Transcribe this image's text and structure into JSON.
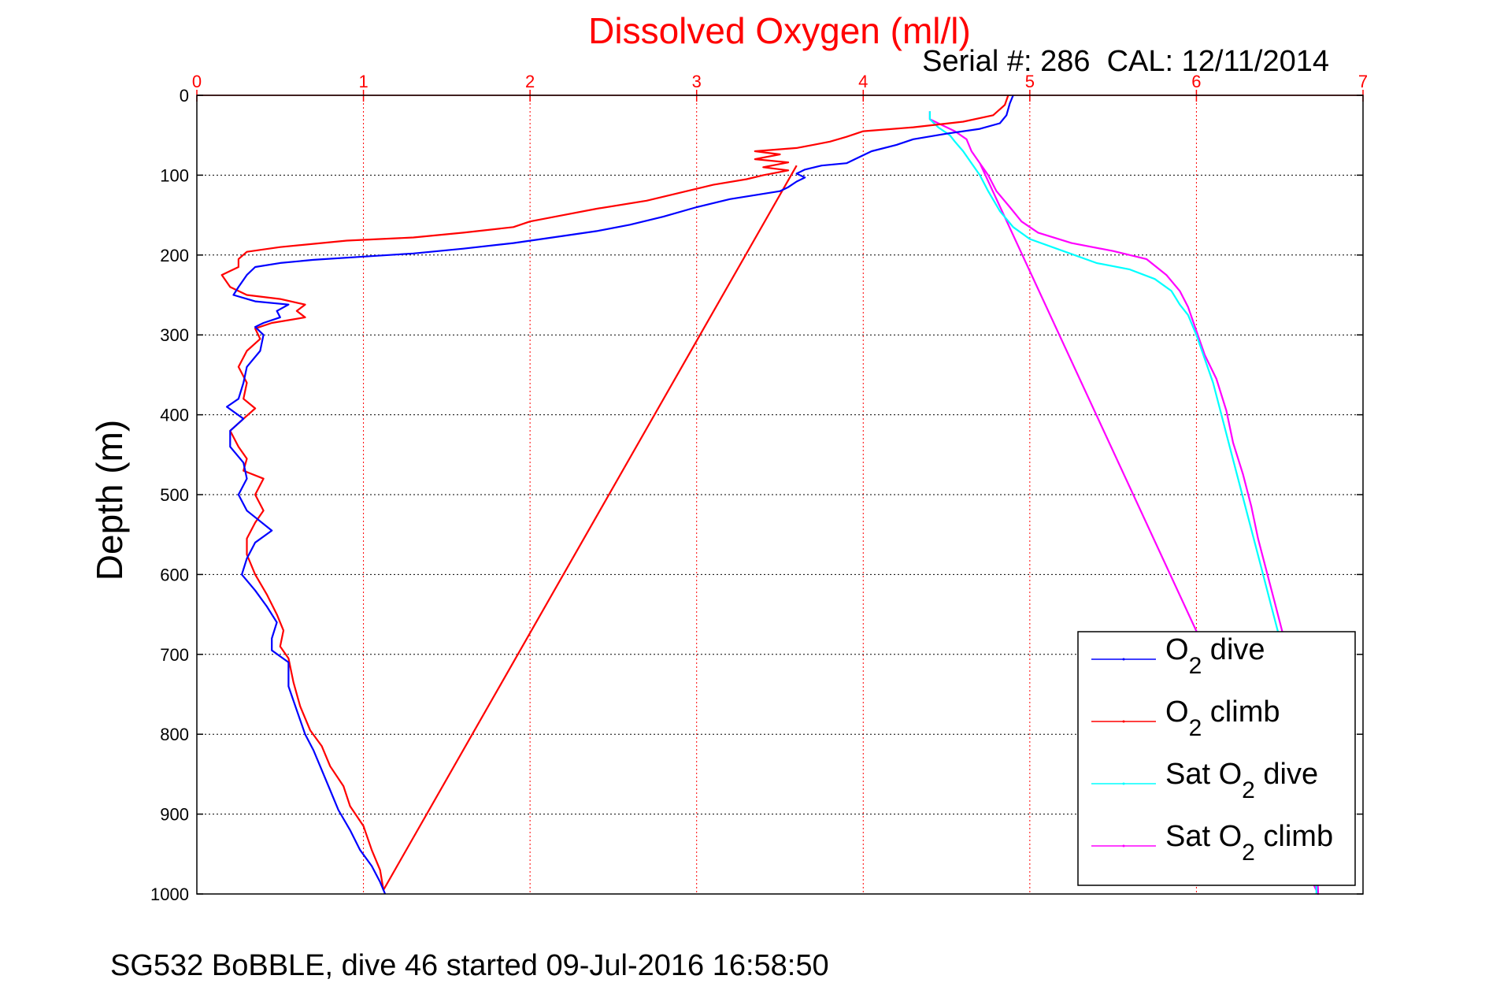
{
  "colors": {
    "axis_x": "#ff0000",
    "axis_y": "#000000",
    "grid_x": "#ff0000",
    "grid_y": "#000000",
    "o2_dive": "#0000ff",
    "o2_climb": "#ff0000",
    "sat_dive": "#00ffff",
    "sat_climb": "#ff00ff"
  },
  "chart_data": {
    "type": "line",
    "title": "Dissolved Oxygen (ml/l)",
    "subtitle": "Serial #: 286  CAL: 12/11/2014",
    "xlabel": "",
    "ylabel": "Depth (m)",
    "footer": "SG532 BoBBLE, dive 46 started 09-Jul-2016 16:58:50",
    "xlim": [
      0,
      7
    ],
    "ylim": [
      0,
      1000
    ],
    "y_reversed": true,
    "x_axis_position": "top",
    "xticks": [
      "0",
      "1",
      "2",
      "3",
      "4",
      "5",
      "6",
      "7"
    ],
    "yticks": [
      "0",
      "100",
      "200",
      "300",
      "400",
      "500",
      "600",
      "700",
      "800",
      "900",
      "1000"
    ],
    "grid": true,
    "legend_position": "bottom-right",
    "legend": [
      {
        "base": "O",
        "sub": "2",
        "rest": " dive",
        "prefix": ""
      },
      {
        "base": "O",
        "sub": "2",
        "rest": " climb",
        "prefix": ""
      },
      {
        "base": "O",
        "sub": "2",
        "rest": " dive",
        "prefix": "Sat "
      },
      {
        "base": "O",
        "sub": "2",
        "rest": " climb",
        "prefix": "Sat "
      }
    ],
    "series": [
      {
        "points": [
          [
            4.9,
            0
          ],
          [
            4.88,
            10
          ],
          [
            4.86,
            25
          ],
          [
            4.82,
            35
          ],
          [
            4.7,
            42
          ],
          [
            4.5,
            48
          ],
          [
            4.3,
            55
          ],
          [
            4.2,
            62
          ],
          [
            4.05,
            70
          ],
          [
            3.95,
            80
          ],
          [
            3.9,
            85
          ],
          [
            3.75,
            88
          ],
          [
            3.65,
            93
          ],
          [
            3.6,
            98
          ],
          [
            3.65,
            103
          ],
          [
            3.6,
            108
          ],
          [
            3.55,
            115
          ],
          [
            3.5,
            120
          ],
          [
            3.2,
            130
          ],
          [
            3.0,
            140
          ],
          [
            2.8,
            152
          ],
          [
            2.6,
            162
          ],
          [
            2.4,
            170
          ],
          [
            2.2,
            176
          ],
          [
            1.9,
            185
          ],
          [
            1.6,
            192
          ],
          [
            1.3,
            198
          ],
          [
            1.0,
            202
          ],
          [
            0.7,
            206
          ],
          [
            0.5,
            210
          ],
          [
            0.35,
            215
          ],
          [
            0.3,
            225
          ],
          [
            0.25,
            240
          ],
          [
            0.22,
            250
          ],
          [
            0.35,
            258
          ],
          [
            0.55,
            262
          ],
          [
            0.48,
            270
          ],
          [
            0.5,
            278
          ],
          [
            0.4,
            285
          ],
          [
            0.35,
            290
          ],
          [
            0.4,
            300
          ],
          [
            0.38,
            320
          ],
          [
            0.3,
            340
          ],
          [
            0.28,
            360
          ],
          [
            0.25,
            380
          ],
          [
            0.18,
            390
          ],
          [
            0.28,
            405
          ],
          [
            0.2,
            420
          ],
          [
            0.2,
            440
          ],
          [
            0.28,
            460
          ],
          [
            0.3,
            480
          ],
          [
            0.25,
            500
          ],
          [
            0.3,
            520
          ],
          [
            0.45,
            545
          ],
          [
            0.35,
            560
          ],
          [
            0.3,
            580
          ],
          [
            0.27,
            600
          ],
          [
            0.35,
            620
          ],
          [
            0.42,
            640
          ],
          [
            0.48,
            660
          ],
          [
            0.45,
            680
          ],
          [
            0.45,
            695
          ],
          [
            0.55,
            710
          ],
          [
            0.55,
            740
          ],
          [
            0.6,
            770
          ],
          [
            0.65,
            800
          ],
          [
            0.7,
            820
          ],
          [
            0.75,
            845
          ],
          [
            0.8,
            870
          ],
          [
            0.85,
            895
          ],
          [
            0.92,
            920
          ],
          [
            0.98,
            945
          ],
          [
            1.05,
            965
          ],
          [
            1.1,
            985
          ],
          [
            1.13,
            1000
          ]
        ]
      },
      {
        "points": [
          [
            4.87,
            0
          ],
          [
            4.85,
            12
          ],
          [
            4.78,
            25
          ],
          [
            4.6,
            33
          ],
          [
            4.3,
            40
          ],
          [
            4.0,
            45
          ],
          [
            3.9,
            52
          ],
          [
            3.8,
            58
          ],
          [
            3.7,
            62
          ],
          [
            3.6,
            66
          ],
          [
            3.35,
            70
          ],
          [
            3.5,
            74
          ],
          [
            3.35,
            80
          ],
          [
            3.55,
            84
          ],
          [
            3.4,
            90
          ],
          [
            3.55,
            94
          ],
          [
            3.4,
            100
          ],
          [
            3.3,
            105
          ],
          [
            3.1,
            112
          ],
          [
            2.9,
            122
          ],
          [
            2.7,
            132
          ],
          [
            2.4,
            142
          ],
          [
            2.2,
            150
          ],
          [
            2.0,
            158
          ],
          [
            1.9,
            165
          ],
          [
            1.6,
            172
          ],
          [
            1.3,
            178
          ],
          [
            0.9,
            182
          ],
          [
            0.5,
            190
          ],
          [
            0.3,
            196
          ],
          [
            0.25,
            205
          ],
          [
            0.25,
            215
          ],
          [
            0.15,
            225
          ],
          [
            0.2,
            240
          ],
          [
            0.3,
            250
          ],
          [
            0.5,
            255
          ],
          [
            0.65,
            262
          ],
          [
            0.6,
            270
          ],
          [
            0.65,
            278
          ],
          [
            0.45,
            285
          ],
          [
            0.35,
            292
          ],
          [
            0.38,
            305
          ],
          [
            0.3,
            320
          ],
          [
            0.25,
            340
          ],
          [
            0.3,
            360
          ],
          [
            0.28,
            380
          ],
          [
            0.35,
            392
          ],
          [
            0.28,
            405
          ],
          [
            0.2,
            420
          ],
          [
            0.25,
            440
          ],
          [
            0.3,
            455
          ],
          [
            0.28,
            470
          ],
          [
            0.4,
            480
          ],
          [
            0.35,
            500
          ],
          [
            0.4,
            520
          ],
          [
            0.35,
            535
          ],
          [
            0.3,
            555
          ],
          [
            0.3,
            575
          ],
          [
            0.35,
            600
          ],
          [
            0.42,
            625
          ],
          [
            0.48,
            650
          ],
          [
            0.52,
            670
          ],
          [
            0.5,
            690
          ],
          [
            0.55,
            705
          ],
          [
            0.58,
            735
          ],
          [
            0.62,
            765
          ],
          [
            0.68,
            795
          ],
          [
            0.75,
            815
          ],
          [
            0.8,
            840
          ],
          [
            0.88,
            865
          ],
          [
            0.92,
            890
          ],
          [
            1.0,
            915
          ],
          [
            1.05,
            945
          ],
          [
            1.1,
            970
          ],
          [
            1.12,
            995
          ],
          [
            3.6,
            88
          ]
        ]
      },
      {
        "points": [
          [
            4.4,
            20
          ],
          [
            4.4,
            30
          ],
          [
            4.45,
            40
          ],
          [
            4.52,
            50
          ],
          [
            4.55,
            58
          ],
          [
            4.6,
            70
          ],
          [
            4.65,
            85
          ],
          [
            4.7,
            100
          ],
          [
            4.75,
            120
          ],
          [
            4.82,
            145
          ],
          [
            4.9,
            165
          ],
          [
            5.0,
            180
          ],
          [
            5.2,
            195
          ],
          [
            5.4,
            210
          ],
          [
            5.6,
            218
          ],
          [
            5.75,
            230
          ],
          [
            5.85,
            245
          ],
          [
            5.9,
            262
          ],
          [
            5.95,
            275
          ],
          [
            6.0,
            300
          ],
          [
            6.05,
            330
          ],
          [
            6.1,
            360
          ],
          [
            6.15,
            400
          ],
          [
            6.2,
            440
          ],
          [
            6.25,
            480
          ],
          [
            6.3,
            520
          ],
          [
            6.35,
            560
          ],
          [
            6.4,
            600
          ],
          [
            6.45,
            640
          ],
          [
            6.5,
            680
          ],
          [
            6.55,
            720
          ],
          [
            6.58,
            760
          ],
          [
            6.62,
            800
          ],
          [
            6.65,
            840
          ],
          [
            6.68,
            880
          ],
          [
            6.7,
            920
          ],
          [
            6.72,
            960
          ],
          [
            6.72,
            1000
          ]
        ]
      },
      {
        "points": [
          [
            4.4,
            20
          ],
          [
            4.4,
            30
          ],
          [
            4.48,
            38
          ],
          [
            4.55,
            45
          ],
          [
            4.62,
            55
          ],
          [
            4.65,
            70
          ],
          [
            4.7,
            85
          ],
          [
            4.75,
            100
          ],
          [
            4.8,
            120
          ],
          [
            4.88,
            140
          ],
          [
            4.95,
            158
          ],
          [
            5.05,
            172
          ],
          [
            5.25,
            185
          ],
          [
            5.5,
            195
          ],
          [
            5.7,
            205
          ],
          [
            5.82,
            225
          ],
          [
            5.9,
            245
          ],
          [
            5.95,
            265
          ],
          [
            6.0,
            295
          ],
          [
            6.05,
            325
          ],
          [
            6.12,
            355
          ],
          [
            6.18,
            395
          ],
          [
            6.22,
            435
          ],
          [
            6.28,
            475
          ],
          [
            6.33,
            515
          ],
          [
            6.37,
            555
          ],
          [
            6.42,
            595
          ],
          [
            6.47,
            635
          ],
          [
            6.52,
            675
          ],
          [
            6.56,
            715
          ],
          [
            6.6,
            755
          ],
          [
            6.63,
            795
          ],
          [
            6.66,
            835
          ],
          [
            6.68,
            875
          ],
          [
            6.7,
            915
          ],
          [
            6.72,
            955
          ],
          [
            6.73,
            995
          ],
          [
            6.73,
            1000
          ],
          [
            4.7,
            85
          ]
        ]
      }
    ]
  }
}
